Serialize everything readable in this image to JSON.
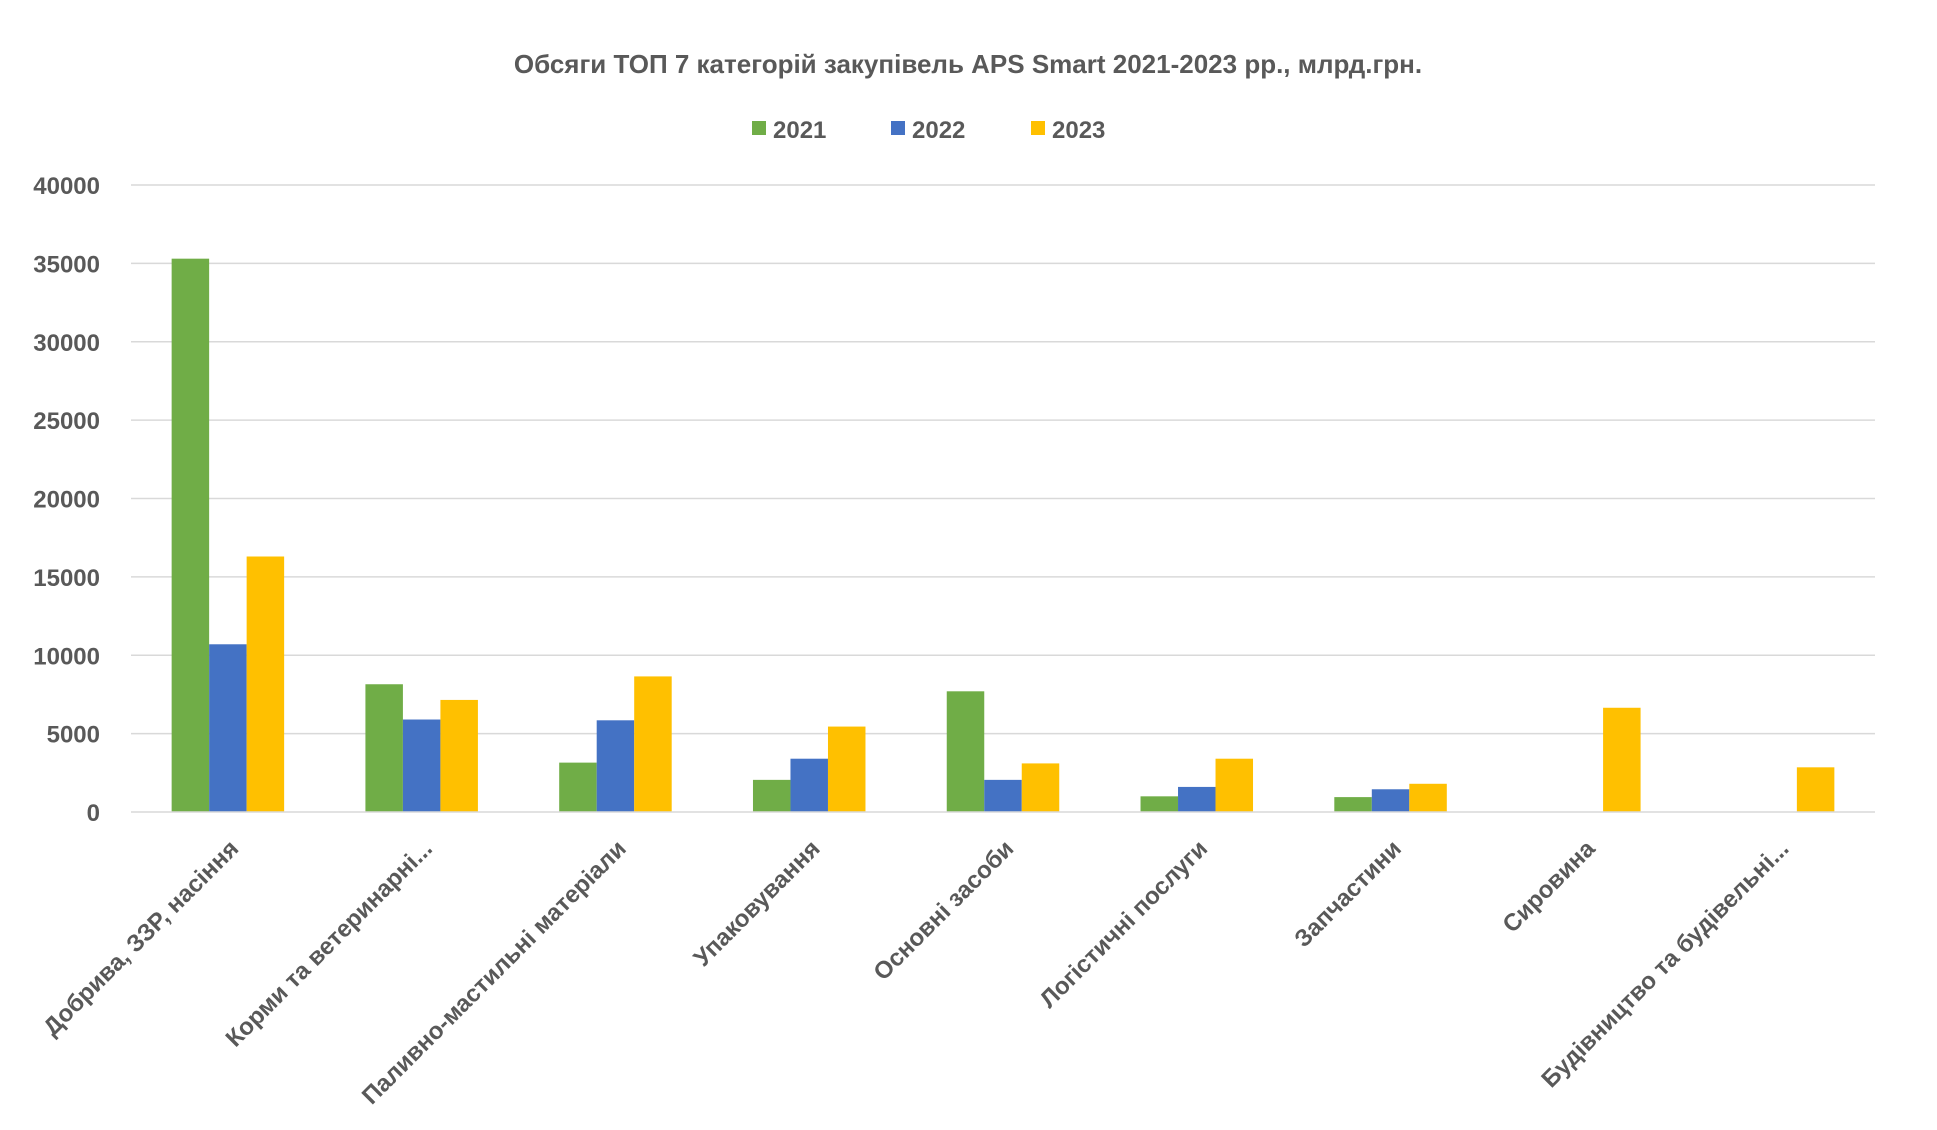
{
  "chart_data": {
    "type": "bar",
    "title": "Обсяги ТОП 7 категорій закупівель APS Smart 2021-2023 рр.,  млрд.грн.",
    "xlabel": "",
    "ylabel": "",
    "ylim": [
      0,
      40000
    ],
    "yticks": [
      0,
      5000,
      10000,
      15000,
      20000,
      25000,
      30000,
      35000,
      40000
    ],
    "grid": true,
    "legend_position": "top",
    "categories": [
      "Добрива, ЗЗР, насіння",
      "Корми та ветеринарні...",
      "Паливно-мастильні матеріали",
      "Упаковування",
      "Основні засоби",
      "Логістичні послуги",
      "Запчастини",
      "Сировина",
      "Будівництво та будівельні..."
    ],
    "series": [
      {
        "name": "2021",
        "color": "#70ad47",
        "values": [
          35300,
          8150,
          3150,
          2050,
          7700,
          1000,
          950,
          null,
          null
        ]
      },
      {
        "name": "2022",
        "color": "#4472c4",
        "values": [
          10700,
          5900,
          5850,
          3400,
          2050,
          1600,
          1450,
          null,
          null
        ]
      },
      {
        "name": "2023",
        "color": "#ffc000",
        "values": [
          16300,
          7150,
          8650,
          5450,
          3100,
          3400,
          1800,
          6650,
          2850
        ]
      }
    ]
  }
}
